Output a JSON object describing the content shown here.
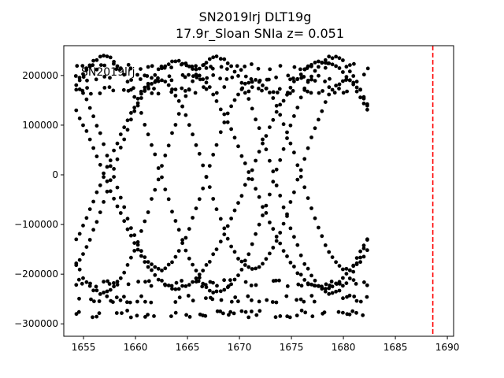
{
  "chart_data": {
    "type": "scatter",
    "title": "SN2019lrj  DLT19g",
    "subtitle": "17.9r_Sloan SNIa z= 0.051",
    "overlay_text": "SN2019lrj",
    "xlabel": "",
    "ylabel": "",
    "xlim": [
      1653.1,
      1690.6
    ],
    "ylim": [
      -325000,
      260000
    ],
    "xticks": [
      1655,
      1660,
      1665,
      1670,
      1675,
      1680,
      1685,
      1690
    ],
    "yticks": [
      200000,
      100000,
      0,
      -100000,
      -200000,
      -300000
    ],
    "ytick_labels": [
      "200000",
      "100000",
      "0",
      "−100000",
      "−200000",
      "−300000"
    ],
    "grid": false,
    "marker_color": "#000000",
    "vline": {
      "x": 1688.6,
      "color": "#ff0000",
      "style": "dashed"
    },
    "series_groups": [
      {
        "x_start": 1654.3,
        "x_end": 1667.8
      },
      {
        "x_start": 1668.2,
        "x_end": 1682.3
      }
    ],
    "band_levels_note": "",
    "flat_bands": [
      218000,
      195000,
      170000,
      -218000,
      -250000,
      -280000
    ],
    "curves": [
      {
        "amplitude": 240000,
        "period": 28,
        "phase": 0.0
      },
      {
        "amplitude": 240000,
        "period": 28,
        "phase": 3.14
      },
      {
        "amplitude": 250000,
        "period": 22,
        "phase": 1.2
      },
      {
        "amplitude": 250000,
        "period": 22,
        "phase": 4.3
      },
      {
        "amplitude": 200000,
        "period": 18,
        "phase": 2.0
      },
      {
        "amplitude": 200000,
        "period": 18,
        "phase": 5.1
      }
    ],
    "points_per_day": 3
  }
}
